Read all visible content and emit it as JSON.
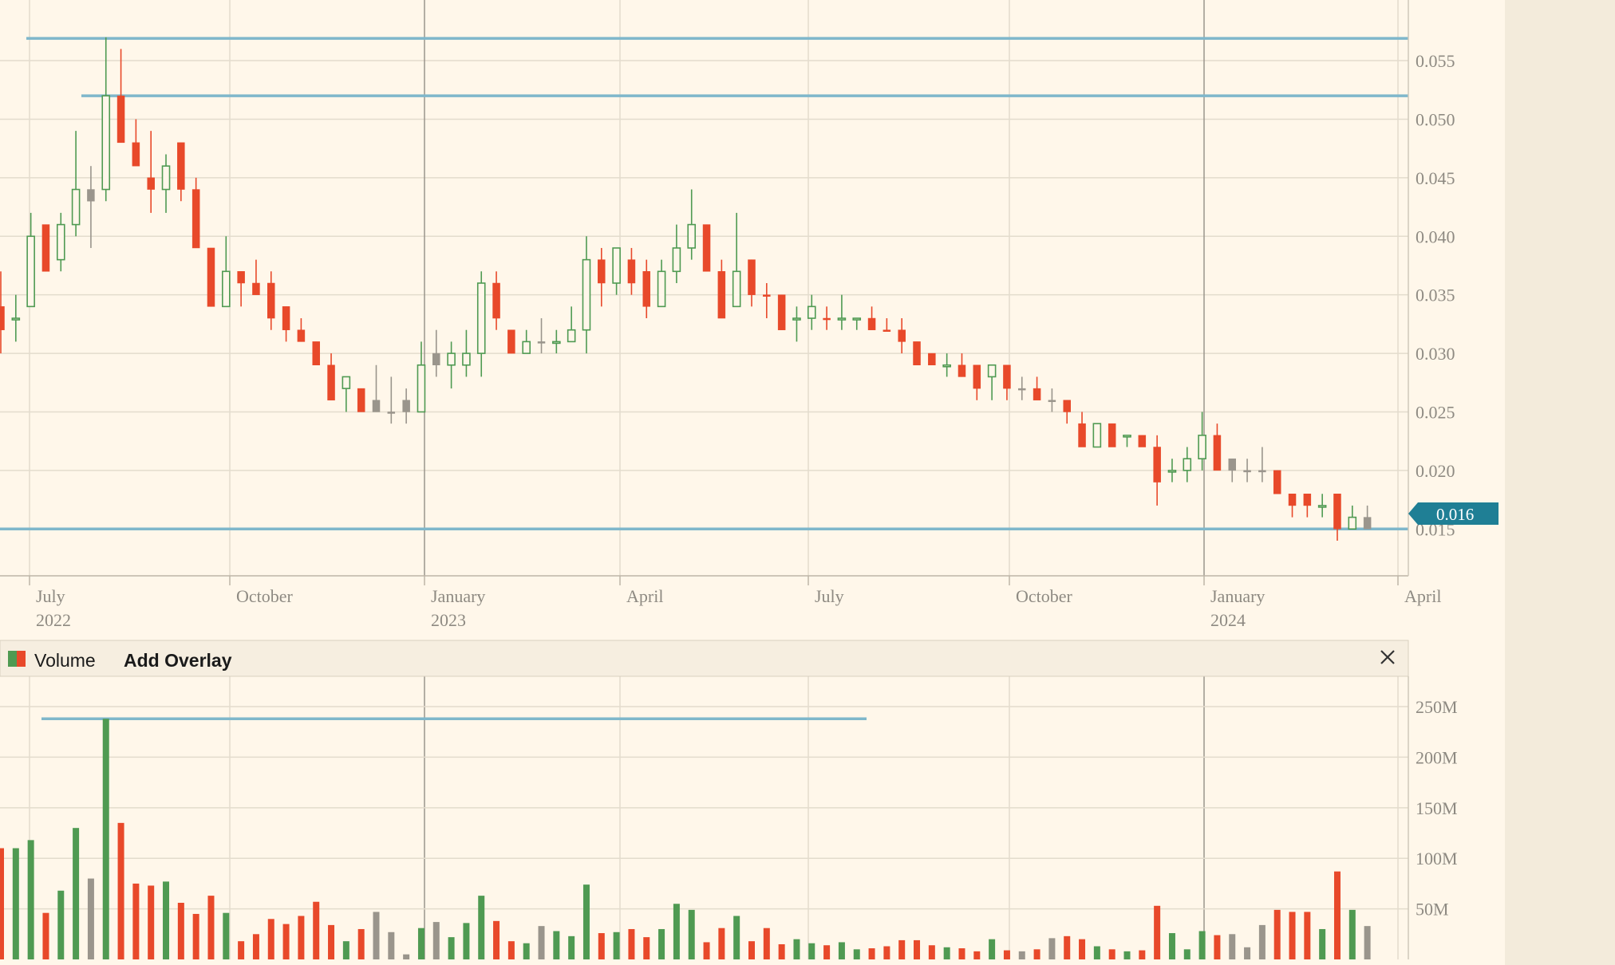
{
  "colors": {
    "background": "#fff7ea",
    "right_margin": "#f3ebdb",
    "grid": "#e3dccd",
    "axis_text": "#8e8a82",
    "up": "#4f9a52",
    "down": "#e8492a",
    "neutral": "#9a958c",
    "level_line": "#7fb7cb",
    "price_flag": "#1f7f95",
    "period_divider": "#9a958c",
    "header_bg": "#f6eee0"
  },
  "price_axis_ticks": [
    "0.015",
    "0.020",
    "0.025",
    "0.030",
    "0.035",
    "0.040",
    "0.045",
    "0.050",
    "0.055"
  ],
  "volume_axis_ticks": [
    "50M",
    "100M",
    "150M",
    "200M",
    "250M"
  ],
  "time_axis": [
    {
      "month": "July",
      "year": "2022"
    },
    {
      "month": "October",
      "year": ""
    },
    {
      "month": "January",
      "year": "2023"
    },
    {
      "month": "April",
      "year": ""
    },
    {
      "month": "July",
      "year": ""
    },
    {
      "month": "October",
      "year": ""
    },
    {
      "month": "January",
      "year": "2024"
    },
    {
      "month": "April",
      "year": ""
    }
  ],
  "current_price_label": "0.016",
  "volume_panel": {
    "title": "Volume",
    "add_overlay_label": "Add Overlay",
    "close_icon": "close-icon",
    "legend_icon": "volume-legend-icon"
  },
  "chart_data": {
    "type": "candlestick",
    "interval": "weekly",
    "x_range": [
      "2022-06",
      "2024-04"
    ],
    "price_ylim": [
      0.011,
      0.0595
    ],
    "volume_ylim": [
      0,
      280
    ],
    "volume_unit": "M",
    "horizontal_levels": [
      0.0569,
      0.052,
      0.015
    ],
    "volume_level": 238,
    "candles": [
      [
        0.034,
        0.037,
        0.03,
        0.032,
        "down"
      ],
      [
        0.033,
        0.035,
        0.031,
        0.033,
        "up"
      ],
      [
        0.034,
        0.042,
        0.034,
        0.04,
        "up"
      ],
      [
        0.041,
        0.041,
        0.037,
        0.037,
        "down"
      ],
      [
        0.038,
        0.042,
        0.037,
        0.041,
        "up"
      ],
      [
        0.041,
        0.049,
        0.04,
        0.044,
        "up"
      ],
      [
        0.043,
        0.046,
        0.039,
        0.044,
        "neutral"
      ],
      [
        0.044,
        0.057,
        0.043,
        0.052,
        "up"
      ],
      [
        0.052,
        0.056,
        0.048,
        0.048,
        "down"
      ],
      [
        0.048,
        0.05,
        0.046,
        0.046,
        "down"
      ],
      [
        0.045,
        0.049,
        0.042,
        0.044,
        "down"
      ],
      [
        0.044,
        0.047,
        0.042,
        0.046,
        "up"
      ],
      [
        0.048,
        0.048,
        0.043,
        0.044,
        "down"
      ],
      [
        0.044,
        0.045,
        0.039,
        0.039,
        "down"
      ],
      [
        0.039,
        0.039,
        0.034,
        0.034,
        "down"
      ],
      [
        0.034,
        0.04,
        0.034,
        0.037,
        "up"
      ],
      [
        0.037,
        0.037,
        0.034,
        0.036,
        "down"
      ],
      [
        0.036,
        0.038,
        0.035,
        0.035,
        "down"
      ],
      [
        0.036,
        0.037,
        0.032,
        0.033,
        "down"
      ],
      [
        0.034,
        0.034,
        0.031,
        0.032,
        "down"
      ],
      [
        0.032,
        0.033,
        0.031,
        0.031,
        "down"
      ],
      [
        0.031,
        0.031,
        0.029,
        0.029,
        "down"
      ],
      [
        0.029,
        0.03,
        0.026,
        0.026,
        "down"
      ],
      [
        0.027,
        0.028,
        0.025,
        0.028,
        "up"
      ],
      [
        0.027,
        0.027,
        0.025,
        0.025,
        "down"
      ],
      [
        0.025,
        0.029,
        0.025,
        0.026,
        "neutral"
      ],
      [
        0.025,
        0.028,
        0.024,
        0.025,
        "neutral"
      ],
      [
        0.025,
        0.027,
        0.024,
        0.026,
        "neutral"
      ],
      [
        0.025,
        0.031,
        0.025,
        0.029,
        "up"
      ],
      [
        0.029,
        0.032,
        0.028,
        0.03,
        "neutral"
      ],
      [
        0.029,
        0.031,
        0.027,
        0.03,
        "up"
      ],
      [
        0.029,
        0.032,
        0.028,
        0.03,
        "up"
      ],
      [
        0.03,
        0.037,
        0.028,
        0.036,
        "up"
      ],
      [
        0.036,
        0.037,
        0.032,
        0.033,
        "down"
      ],
      [
        0.032,
        0.032,
        0.03,
        0.03,
        "down"
      ],
      [
        0.03,
        0.032,
        0.03,
        0.031,
        "up"
      ],
      [
        0.031,
        0.033,
        0.03,
        0.031,
        "neutral"
      ],
      [
        0.031,
        0.032,
        0.03,
        0.031,
        "up"
      ],
      [
        0.031,
        0.034,
        0.031,
        0.032,
        "up"
      ],
      [
        0.032,
        0.04,
        0.03,
        0.038,
        "up"
      ],
      [
        0.038,
        0.039,
        0.034,
        0.036,
        "down"
      ],
      [
        0.036,
        0.039,
        0.035,
        0.039,
        "up"
      ],
      [
        0.038,
        0.039,
        0.035,
        0.036,
        "down"
      ],
      [
        0.037,
        0.038,
        0.033,
        0.034,
        "down"
      ],
      [
        0.034,
        0.038,
        0.034,
        0.037,
        "up"
      ],
      [
        0.037,
        0.041,
        0.036,
        0.039,
        "up"
      ],
      [
        0.039,
        0.044,
        0.038,
        0.041,
        "up"
      ],
      [
        0.041,
        0.041,
        0.037,
        0.037,
        "down"
      ],
      [
        0.037,
        0.038,
        0.033,
        0.033,
        "down"
      ],
      [
        0.034,
        0.042,
        0.034,
        0.037,
        "up"
      ],
      [
        0.038,
        0.038,
        0.034,
        0.035,
        "down"
      ],
      [
        0.035,
        0.036,
        0.033,
        0.035,
        "down"
      ],
      [
        0.035,
        0.035,
        0.032,
        0.032,
        "down"
      ],
      [
        0.033,
        0.034,
        0.031,
        0.033,
        "up"
      ],
      [
        0.033,
        0.035,
        0.032,
        0.034,
        "up"
      ],
      [
        0.033,
        0.034,
        0.032,
        0.033,
        "down"
      ],
      [
        0.033,
        0.035,
        0.032,
        0.033,
        "up"
      ],
      [
        0.033,
        0.033,
        0.032,
        0.033,
        "up"
      ],
      [
        0.033,
        0.034,
        0.032,
        0.032,
        "down"
      ],
      [
        0.032,
        0.033,
        0.032,
        0.032,
        "down"
      ],
      [
        0.032,
        0.033,
        0.03,
        0.031,
        "down"
      ],
      [
        0.031,
        0.031,
        0.029,
        0.029,
        "down"
      ],
      [
        0.03,
        0.03,
        0.029,
        0.029,
        "down"
      ],
      [
        0.029,
        0.03,
        0.028,
        0.029,
        "up"
      ],
      [
        0.029,
        0.03,
        0.028,
        0.028,
        "down"
      ],
      [
        0.029,
        0.029,
        0.026,
        0.027,
        "down"
      ],
      [
        0.028,
        0.029,
        0.026,
        0.029,
        "up"
      ],
      [
        0.029,
        0.029,
        0.026,
        0.027,
        "down"
      ],
      [
        0.027,
        0.028,
        0.026,
        0.027,
        "neutral"
      ],
      [
        0.027,
        0.028,
        0.026,
        0.026,
        "down"
      ],
      [
        0.026,
        0.027,
        0.025,
        0.026,
        "neutral"
      ],
      [
        0.026,
        0.026,
        0.024,
        0.025,
        "down"
      ],
      [
        0.024,
        0.025,
        0.022,
        0.022,
        "down"
      ],
      [
        0.022,
        0.024,
        0.022,
        0.024,
        "up"
      ],
      [
        0.024,
        0.024,
        0.022,
        0.022,
        "down"
      ],
      [
        0.023,
        0.023,
        0.022,
        0.023,
        "up"
      ],
      [
        0.023,
        0.023,
        0.022,
        0.022,
        "down"
      ],
      [
        0.022,
        0.023,
        0.017,
        0.019,
        "down"
      ],
      [
        0.02,
        0.021,
        0.019,
        0.02,
        "up"
      ],
      [
        0.02,
        0.022,
        0.019,
        0.021,
        "up"
      ],
      [
        0.021,
        0.025,
        0.02,
        0.023,
        "up"
      ],
      [
        0.023,
        0.024,
        0.02,
        0.02,
        "down"
      ],
      [
        0.021,
        0.021,
        0.019,
        0.02,
        "neutral"
      ],
      [
        0.02,
        0.021,
        0.019,
        0.02,
        "neutral"
      ],
      [
        0.02,
        0.022,
        0.019,
        0.02,
        "neutral"
      ],
      [
        0.02,
        0.02,
        0.018,
        0.018,
        "down"
      ],
      [
        0.018,
        0.018,
        0.016,
        0.017,
        "down"
      ],
      [
        0.018,
        0.018,
        0.016,
        0.017,
        "down"
      ],
      [
        0.017,
        0.018,
        0.016,
        0.017,
        "up"
      ],
      [
        0.018,
        0.018,
        0.014,
        0.015,
        "down"
      ],
      [
        0.015,
        0.017,
        0.015,
        0.016,
        "up"
      ],
      [
        0.015,
        0.017,
        0.015,
        0.016,
        "neutral"
      ]
    ],
    "volumes": [
      110,
      110,
      118,
      46,
      68,
      130,
      80,
      238,
      135,
      75,
      73,
      77,
      56,
      45,
      63,
      46,
      18,
      25,
      40,
      35,
      43,
      57,
      34,
      18,
      30,
      47,
      27,
      5,
      31,
      37,
      22,
      36,
      63,
      38,
      18,
      16,
      33,
      28,
      23,
      74,
      26,
      27,
      30,
      22,
      30,
      55,
      49,
      17,
      31,
      43,
      18,
      31,
      15,
      20,
      16,
      14,
      17,
      10,
      11,
      13,
      19,
      19,
      14,
      12,
      11,
      8,
      20,
      9,
      8,
      10,
      21,
      23,
      20,
      13,
      10,
      8,
      9,
      53,
      26,
      10,
      28,
      24,
      25,
      12,
      34,
      49,
      47,
      47,
      30,
      87,
      49,
      33
    ],
    "volume_colors": [
      "down",
      "up",
      "up",
      "down",
      "up",
      "up",
      "neutral",
      "up",
      "down",
      "down",
      "down",
      "up",
      "down",
      "down",
      "down",
      "up",
      "down",
      "down",
      "down",
      "down",
      "down",
      "down",
      "down",
      "up",
      "down",
      "neutral",
      "neutral",
      "neutral",
      "up",
      "neutral",
      "up",
      "up",
      "up",
      "down",
      "down",
      "up",
      "neutral",
      "up",
      "up",
      "up",
      "down",
      "up",
      "down",
      "down",
      "up",
      "up",
      "up",
      "down",
      "down",
      "up",
      "down",
      "down",
      "down",
      "up",
      "up",
      "down",
      "up",
      "up",
      "down",
      "down",
      "down",
      "down",
      "down",
      "up",
      "down",
      "down",
      "up",
      "down",
      "neutral",
      "down",
      "neutral",
      "down",
      "down",
      "up",
      "down",
      "up",
      "down",
      "down",
      "up",
      "up",
      "up",
      "down",
      "neutral",
      "neutral",
      "neutral",
      "down",
      "down",
      "down",
      "up",
      "down",
      "up",
      "neutral"
    ]
  }
}
